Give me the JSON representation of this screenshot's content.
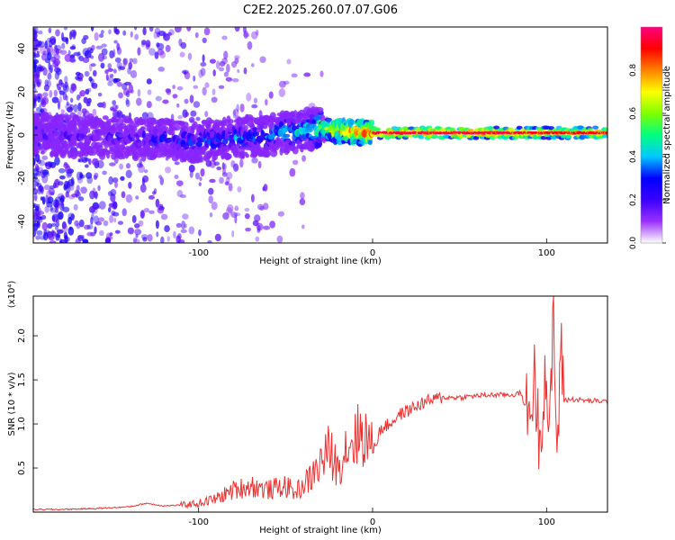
{
  "chart_data": [
    {
      "type": "heatmap",
      "title": "C2E2.2025.260.07.07.G06",
      "xlabel": "Height of straight line (km)",
      "ylabel": "Frequency (Hz)",
      "xlim": [
        -195,
        135
      ],
      "ylim": [
        -50,
        50
      ],
      "xticks": [
        -100,
        0,
        100
      ],
      "yticks": [
        -40,
        -20,
        0,
        20,
        40
      ],
      "colorbar": {
        "label": "Normalized spectral amplitude",
        "range": [
          0,
          1
        ],
        "ticks": [
          0.0,
          0.2,
          0.4,
          0.6,
          0.8
        ],
        "tick_labels": [
          "0.0",
          "0.2",
          "0.4",
          "0.6",
          "0.8"
        ],
        "colormap": [
          "#ffffff",
          "#9b30ff",
          "#3a00ff",
          "#0000ff",
          "#00c8ff",
          "#00ff80",
          "#80ff00",
          "#ffff00",
          "#ff8000",
          "#ff0000",
          "#ff0080"
        ]
      },
      "ridge": {
        "description_points_x": [
          -190,
          -150,
          -100,
          -60,
          -40,
          -30,
          -20,
          0,
          20,
          50,
          80,
          100,
          135
        ],
        "center_freq": [
          0,
          -1,
          -3,
          0,
          2,
          3,
          2,
          1,
          1,
          1,
          1,
          1,
          1
        ],
        "peak_amplitude": [
          0.25,
          0.3,
          0.4,
          0.45,
          0.55,
          0.65,
          0.85,
          0.95,
          0.95,
          0.95,
          0.95,
          0.9,
          0.9
        ]
      }
    },
    {
      "type": "line",
      "xlabel": "Height of straight line (km)",
      "ylabel": "SNR (10 * v/v)",
      "y_multiplier": "(x10⁴)",
      "xlim": [
        -195,
        135
      ],
      "ylim": [
        0,
        2.45
      ],
      "xticks": [
        -100,
        0,
        100
      ],
      "yticks": [
        0.5,
        1.0,
        1.5,
        2.0
      ],
      "ytick_labels": [
        "0.5",
        "1.0",
        "1.5",
        "2.0"
      ],
      "line_color": "#ee3030",
      "series": [
        {
          "name": "SNR",
          "x": [
            -195,
            -180,
            -160,
            -140,
            -130,
            -120,
            -110,
            -100,
            -90,
            -80,
            -70,
            -60,
            -50,
            -45,
            -40,
            -35,
            -30,
            -25,
            -20,
            -15,
            -10,
            -5,
            0,
            5,
            10,
            15,
            20,
            25,
            30,
            40,
            50,
            60,
            70,
            80,
            85,
            90,
            93,
            96,
            99,
            102,
            104,
            106,
            108,
            110,
            115,
            120,
            125,
            130,
            135
          ],
          "y": [
            0.03,
            0.03,
            0.04,
            0.06,
            0.1,
            0.07,
            0.08,
            0.1,
            0.15,
            0.25,
            0.3,
            0.25,
            0.3,
            0.22,
            0.3,
            0.4,
            0.55,
            0.7,
            0.5,
            0.75,
            0.85,
            0.9,
            0.7,
            0.95,
            1.0,
            1.1,
            1.15,
            1.2,
            1.25,
            1.3,
            1.3,
            1.32,
            1.33,
            1.33,
            1.35,
            1.1,
            1.5,
            0.8,
            1.6,
            0.9,
            2.3,
            0.5,
            1.9,
            1.27,
            1.28,
            1.27,
            1.26,
            1.26,
            1.25
          ]
        }
      ]
    }
  ]
}
